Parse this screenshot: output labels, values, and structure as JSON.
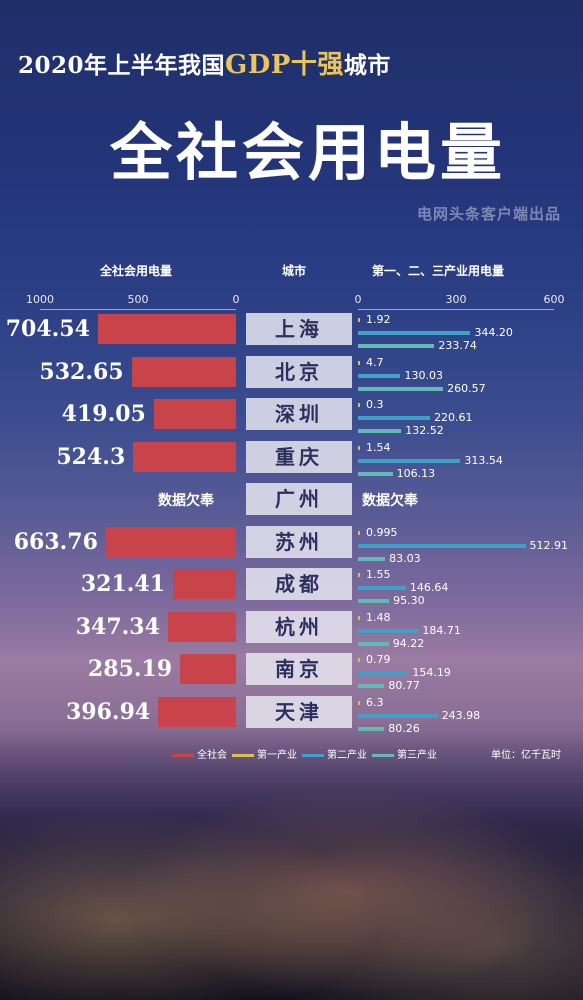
{
  "title": {
    "line1_prefix": "2020年上半年我国",
    "line1_highlight": "GDP十强",
    "line1_suffix": "城市",
    "main": "全社会用电量",
    "source": "电网头条客户端出品"
  },
  "colors": {
    "total": "#c8434a",
    "primary": "#d8c24a",
    "secondary": "#3fa0c8",
    "tertiary": "#63b9b4",
    "city_box_bg": "#e6e6f0",
    "city_text": "#2e2f5e"
  },
  "chart_data": {
    "type": "bar",
    "headers": {
      "left": "全社会用电量",
      "middle": "城市",
      "right": "第一、二、三产业用电量"
    },
    "left_axis": {
      "ticks": [
        "1000",
        "500",
        "0"
      ],
      "range": [
        0,
        1000
      ]
    },
    "right_axis": {
      "ticks": [
        "0",
        "300",
        "600"
      ],
      "range": [
        0,
        600
      ]
    },
    "no_data_label": "数据欠奉",
    "series": [
      {
        "name": "全社会",
        "key": "total"
      },
      {
        "name": "第一产业",
        "key": "primary"
      },
      {
        "name": "第二产业",
        "key": "secondary"
      },
      {
        "name": "第三产业",
        "key": "tertiary"
      }
    ],
    "unit": "单位：亿千瓦时",
    "rows": [
      {
        "city": "上海",
        "total": "704.54",
        "primary": "1.92",
        "secondary": "344.20",
        "tertiary": "233.74"
      },
      {
        "city": "北京",
        "total": "532.65",
        "primary": "4.7",
        "secondary": "130.03",
        "tertiary": "260.57"
      },
      {
        "city": "深圳",
        "total": "419.05",
        "primary": "0.3",
        "secondary": "220.61",
        "tertiary": "132.52"
      },
      {
        "city": "重庆",
        "total": "524.3",
        "primary": "1.54",
        "secondary": "313.54",
        "tertiary": "106.13"
      },
      {
        "city": "广州",
        "total": null,
        "primary": null,
        "secondary": null,
        "tertiary": null
      },
      {
        "city": "苏州",
        "total": "663.76",
        "primary": "0.995",
        "secondary": "512.91",
        "tertiary": "83.03"
      },
      {
        "city": "成都",
        "total": "321.41",
        "primary": "1.55",
        "secondary": "146.64",
        "tertiary": "95.30"
      },
      {
        "city": "杭州",
        "total": "347.34",
        "primary": "1.48",
        "secondary": "184.71",
        "tertiary": "94.22"
      },
      {
        "city": "南京",
        "total": "285.19",
        "primary": "0.79",
        "secondary": "154.19",
        "tertiary": "80.77"
      },
      {
        "city": "天津",
        "total": "396.94",
        "primary": "6.3",
        "secondary": "243.98",
        "tertiary": "80.26"
      }
    ]
  }
}
